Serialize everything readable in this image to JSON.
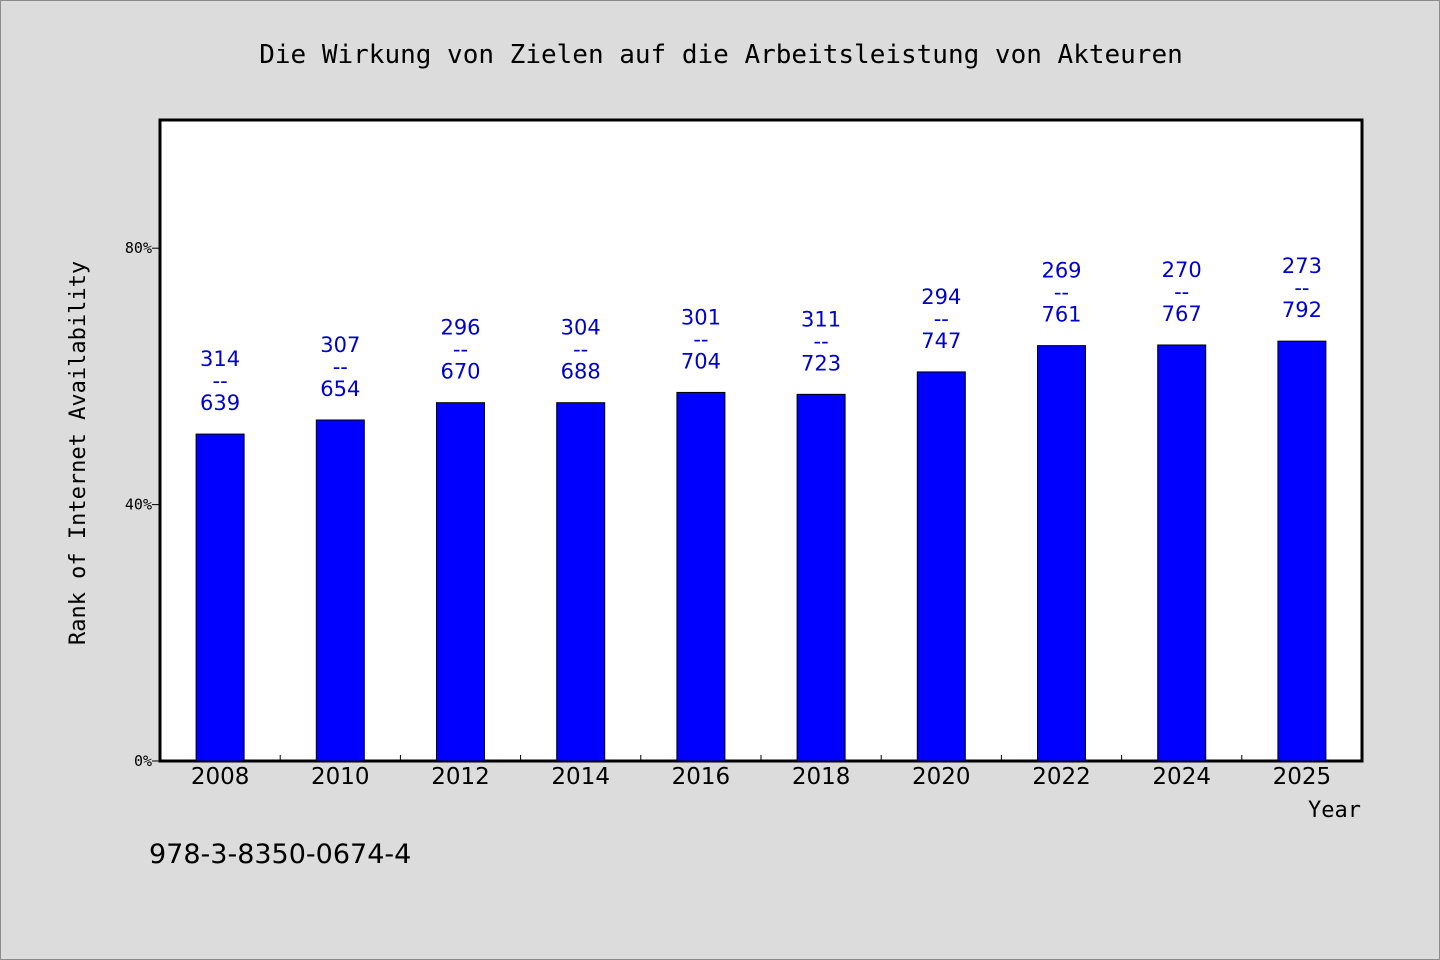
{
  "chart_data": {
    "type": "bar",
    "title": "Die Wirkung von Zielen auf die Arbeitsleistung von Akteuren",
    "xlabel": "Year",
    "ylabel": "Rank of Internet Availability",
    "categories": [
      "2008",
      "2010",
      "2012",
      "2014",
      "2016",
      "2018",
      "2020",
      "2022",
      "2024",
      "2025"
    ],
    "values": [
      51,
      53.2,
      55.9,
      55.9,
      57.5,
      57.2,
      60.7,
      64.8,
      64.9,
      65.5
    ],
    "labels_top": [
      "314",
      "307",
      "296",
      "304",
      "301",
      "311",
      "294",
      "269",
      "270",
      "273"
    ],
    "labels_bottom": [
      "639",
      "654",
      "670",
      "688",
      "704",
      "723",
      "747",
      "761",
      "767",
      "792"
    ],
    "label_separator": "--",
    "ylim": [
      0,
      100
    ],
    "yticks": [
      0,
      40,
      80
    ],
    "ytick_labels": [
      "0%",
      "40%",
      "80%"
    ],
    "bar_color": "#0000ff",
    "label_color": "#0000cc",
    "grid": false
  },
  "footer": {
    "isbn": "978-3-8350-0674-4"
  }
}
